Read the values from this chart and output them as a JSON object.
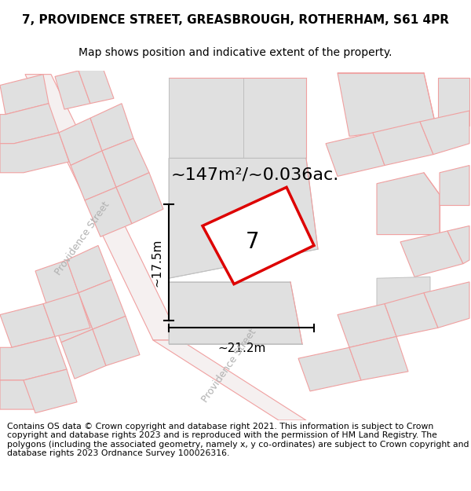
{
  "title": "7, PROVIDENCE STREET, GREASBROUGH, ROTHERHAM, S61 4PR",
  "subtitle": "Map shows position and indicative extent of the property.",
  "footer": "Contains OS data © Crown copyright and database right 2021. This information is subject to Crown copyright and database rights 2023 and is reproduced with the permission of HM Land Registry. The polygons (including the associated geometry, namely x, y co-ordinates) are subject to Crown copyright and database rights 2023 Ordnance Survey 100026316.",
  "area_label": "~147m²/~0.036ac.",
  "number_label": "7",
  "dim_width": "~21.2m",
  "dim_height": "~17.5m",
  "map_bg": "#f7f7f7",
  "property_fill": "#ffffff",
  "property_edge": "#dd0000",
  "building_fill": "#e0e0e0",
  "building_edge": "#f0a0a0",
  "building_edge2": "#c0c0c0",
  "street_label_color": "#b0b0b0",
  "title_fontsize": 11,
  "subtitle_fontsize": 10,
  "footer_fontsize": 7.8,
  "area_fontsize": 16,
  "number_fontsize": 20,
  "dim_fontsize": 11,
  "street_fontsize": 9
}
